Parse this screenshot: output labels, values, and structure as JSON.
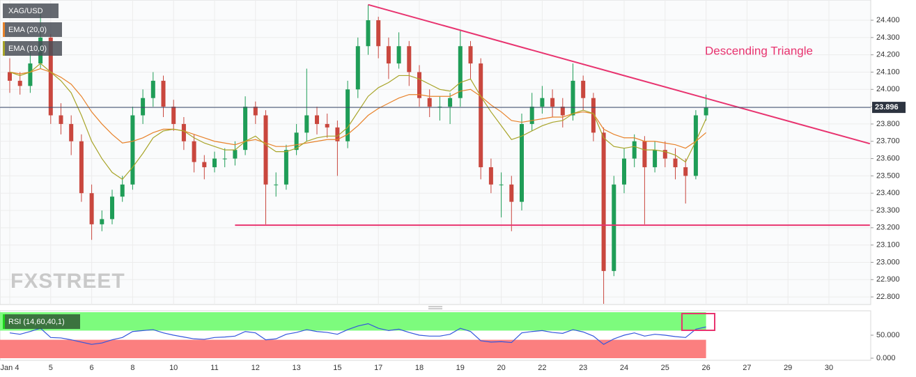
{
  "chart_data": [
    {
      "type": "candlestick",
      "title": "XAG/USD",
      "categories": [
        "Jan 4",
        null,
        null,
        null,
        "5",
        null,
        null,
        null,
        "6",
        null,
        null,
        null,
        "8",
        null,
        null,
        null,
        "10",
        null,
        null,
        null,
        "11",
        null,
        null,
        null,
        "12",
        null,
        null,
        null,
        "13",
        null,
        null,
        null,
        "15",
        null,
        null,
        null,
        "17",
        null,
        null,
        null,
        "18",
        null,
        null,
        null,
        "19",
        null,
        null,
        null,
        "20",
        null,
        null,
        null,
        "22",
        null,
        null,
        null,
        "23",
        null,
        null,
        null,
        "24",
        null,
        null,
        null,
        "25",
        null,
        null,
        null,
        "26",
        null,
        null,
        null,
        "27",
        null,
        null,
        null,
        "29",
        null,
        null,
        null,
        "30"
      ],
      "open": [
        24.1,
        24.05,
        24.02,
        24.15,
        24.3,
        23.85,
        23.8,
        23.7,
        23.4,
        23.22,
        23.25,
        23.38,
        23.45,
        23.85,
        23.95,
        24.05,
        23.9,
        23.8,
        23.7,
        23.58,
        23.55,
        23.6,
        23.6,
        23.65,
        23.9,
        23.85,
        23.45,
        23.45,
        23.65,
        23.75,
        23.85,
        23.8,
        23.78,
        23.7,
        24.0,
        24.25,
        24.4,
        24.25,
        24.15,
        24.25,
        24.1,
        23.95,
        23.9,
        23.9,
        23.95,
        24.25,
        24.15,
        23.55,
        23.45,
        23.45,
        23.35,
        23.8,
        23.9,
        23.95,
        23.9,
        23.85,
        24.05,
        23.95,
        23.75,
        22.95,
        23.45,
        23.6,
        23.7,
        23.55,
        23.65,
        23.6,
        23.55,
        23.5,
        23.85,
        null,
        null,
        null,
        null,
        null,
        null,
        null,
        null,
        null,
        null,
        null,
        null
      ],
      "high": [
        24.18,
        24.1,
        24.22,
        24.45,
        24.32,
        23.92,
        23.85,
        23.74,
        23.45,
        23.3,
        23.42,
        23.5,
        23.9,
        24.0,
        24.1,
        24.08,
        23.94,
        23.84,
        23.74,
        23.62,
        23.64,
        23.66,
        23.7,
        23.96,
        23.93,
        23.88,
        23.52,
        23.68,
        23.8,
        24.12,
        23.9,
        23.86,
        23.82,
        24.05,
        24.3,
        24.49,
        24.42,
        24.3,
        24.33,
        24.28,
        24.14,
        24.0,
        23.96,
        23.98,
        24.34,
        24.28,
        24.18,
        23.6,
        23.52,
        23.5,
        23.86,
        23.98,
        24.02,
        24.0,
        23.95,
        24.15,
        24.08,
        23.98,
        23.78,
        23.5,
        23.66,
        23.74,
        23.73,
        23.7,
        23.7,
        23.66,
        23.6,
        23.88,
        23.97,
        null,
        null,
        null,
        null,
        null,
        null,
        null,
        null,
        null,
        null,
        null,
        null
      ],
      "low": [
        23.98,
        23.97,
        23.98,
        24.12,
        23.8,
        23.74,
        23.62,
        23.35,
        23.13,
        23.18,
        23.22,
        23.35,
        23.42,
        23.8,
        23.9,
        23.84,
        23.76,
        23.65,
        23.52,
        23.48,
        23.52,
        23.55,
        23.56,
        23.62,
        23.8,
        23.22,
        23.38,
        23.42,
        23.62,
        23.7,
        23.74,
        23.72,
        23.5,
        23.66,
        23.95,
        24.2,
        24.18,
        24.06,
        24.12,
        24.02,
        23.9,
        23.84,
        23.82,
        23.8,
        23.9,
        24.06,
        23.48,
        23.4,
        23.26,
        23.18,
        23.3,
        23.76,
        23.86,
        23.84,
        23.78,
        23.82,
        23.88,
        23.7,
        22.76,
        22.92,
        23.4,
        23.55,
        23.22,
        23.52,
        23.55,
        23.48,
        23.34,
        23.48,
        23.82,
        null,
        null,
        null,
        null,
        null,
        null,
        null,
        null,
        null,
        null,
        null,
        null
      ],
      "close": [
        24.05,
        24.02,
        24.15,
        24.3,
        23.85,
        23.8,
        23.7,
        23.4,
        23.22,
        23.25,
        23.38,
        23.45,
        23.85,
        23.95,
        24.05,
        23.9,
        23.8,
        23.7,
        23.58,
        23.55,
        23.6,
        23.6,
        23.65,
        23.9,
        23.85,
        23.45,
        23.45,
        23.65,
        23.75,
        23.85,
        23.8,
        23.78,
        23.7,
        24.0,
        24.25,
        24.4,
        24.25,
        24.15,
        24.25,
        24.1,
        23.95,
        23.9,
        23.9,
        23.95,
        24.25,
        24.15,
        23.55,
        23.45,
        23.45,
        23.35,
        23.8,
        23.9,
        23.95,
        23.9,
        23.85,
        24.05,
        23.95,
        23.75,
        22.95,
        23.45,
        23.6,
        23.7,
        23.55,
        23.65,
        23.6,
        23.55,
        23.5,
        23.85,
        23.896,
        null,
        null,
        null,
        null,
        null,
        null,
        null,
        null,
        null,
        null,
        null,
        null
      ],
      "up_color": "#1f9d57",
      "down_color": "#c9473e",
      "series": [
        {
          "name": "EMA (20,0)",
          "color": "#e8822a",
          "values": [
            24.1,
            24.09,
            24.1,
            24.12,
            24.1,
            24.07,
            24.03,
            23.96,
            23.87,
            23.8,
            23.74,
            23.69,
            23.7,
            23.72,
            23.75,
            23.77,
            23.77,
            23.76,
            23.74,
            23.72,
            23.7,
            23.69,
            23.68,
            23.7,
            23.71,
            23.69,
            23.67,
            23.67,
            23.68,
            23.69,
            23.7,
            23.71,
            23.71,
            23.74,
            23.79,
            23.85,
            23.89,
            23.92,
            23.95,
            23.97,
            23.97,
            23.96,
            23.96,
            23.96,
            23.99,
            24.0,
            23.96,
            23.91,
            23.87,
            23.82,
            23.81,
            23.82,
            23.83,
            23.84,
            23.84,
            23.86,
            23.87,
            23.86,
            23.77,
            23.74,
            23.72,
            23.72,
            23.7,
            23.7,
            23.69,
            23.68,
            23.66,
            23.7,
            23.75,
            null,
            null,
            null,
            null,
            null,
            null,
            null,
            null,
            null,
            null,
            null,
            null
          ]
        },
        {
          "name": "EMA (10,0)",
          "color": "#a8a428",
          "values": [
            24.1,
            24.08,
            24.1,
            24.15,
            24.1,
            24.05,
            23.98,
            23.85,
            23.7,
            23.6,
            23.52,
            23.48,
            23.55,
            23.63,
            23.72,
            23.76,
            23.77,
            23.76,
            23.72,
            23.69,
            23.67,
            23.65,
            23.65,
            23.7,
            23.73,
            23.68,
            23.64,
            23.64,
            23.66,
            23.7,
            23.72,
            23.73,
            23.73,
            23.78,
            23.87,
            23.96,
            24.01,
            24.04,
            24.08,
            24.08,
            24.06,
            24.03,
            24.0,
            23.99,
            24.04,
            24.06,
            23.96,
            23.87,
            23.79,
            23.71,
            23.73,
            23.76,
            23.79,
            23.81,
            23.82,
            23.86,
            23.88,
            23.86,
            23.72,
            23.67,
            23.66,
            23.67,
            23.65,
            23.65,
            23.64,
            23.62,
            23.58,
            23.7,
            23.83,
            null,
            null,
            null,
            null,
            null,
            null,
            null,
            null,
            null,
            null,
            null,
            null
          ]
        }
      ],
      "ylim": [
        22.756,
        24.517
      ],
      "yticks": [
        {
          "value": 22.8,
          "label": "22.800"
        },
        {
          "value": 22.9,
          "label": "22.900"
        },
        {
          "value": 23.0,
          "label": "23.000"
        },
        {
          "value": 23.1,
          "label": "23.100"
        },
        {
          "value": 23.2,
          "label": "23.200"
        },
        {
          "value": 23.3,
          "label": "23.300"
        },
        {
          "value": 23.4,
          "label": "23.400"
        },
        {
          "value": 23.5,
          "label": "23.500"
        },
        {
          "value": 23.6,
          "label": "23.600"
        },
        {
          "value": 23.7,
          "label": "23.700"
        },
        {
          "value": 23.8,
          "label": "23.800"
        },
        {
          "value": 23.9,
          "label": "23.900"
        },
        {
          "value": 24.0,
          "label": "24.000"
        },
        {
          "value": 24.1,
          "label": "24.100"
        },
        {
          "value": 24.2,
          "label": "24.200"
        },
        {
          "value": 24.3,
          "label": "24.300"
        },
        {
          "value": 24.4,
          "label": "24.400"
        }
      ],
      "grid": true,
      "last_price": 23.896,
      "annotation": "Descending Triangle",
      "lines": [
        {
          "x": [
            35,
            84
          ],
          "y": [
            24.49,
            23.686
          ],
          "color": "#e8336f"
        },
        {
          "x": [
            22,
            84
          ],
          "y": [
            23.215,
            23.215
          ],
          "color": "#e8336f"
        }
      ],
      "watermark": "FXSTREET"
    },
    {
      "type": "line",
      "series": [
        {
          "name": "RSI (14,60,40,1)",
          "color": "#3355dd",
          "values": [
            55,
            52,
            58,
            65,
            45,
            44,
            40,
            35,
            30,
            33,
            40,
            45,
            58,
            60,
            62,
            55,
            50,
            46,
            42,
            41,
            45,
            46,
            48,
            58,
            55,
            40,
            42,
            52,
            56,
            62,
            58,
            56,
            52,
            62,
            70,
            75,
            65,
            60,
            63,
            56,
            50,
            48,
            48,
            52,
            65,
            58,
            38,
            35,
            36,
            34,
            55,
            58,
            60,
            56,
            54,
            62,
            57,
            48,
            30,
            42,
            50,
            55,
            48,
            52,
            50,
            47,
            45,
            63,
            68,
            null,
            null,
            null,
            null,
            null,
            null,
            null,
            null,
            null,
            null,
            null,
            null
          ]
        }
      ],
      "ylim": [
        0,
        100
      ],
      "yticks": [
        {
          "value": 50,
          "label": "50.000"
        },
        {
          "value": 0,
          "label": "0.000"
        }
      ],
      "zones": [
        {
          "from": 60,
          "to": 100,
          "color": "#7dfb7d"
        },
        {
          "from": 0,
          "to": 40,
          "color": "#fb7f7f"
        }
      ]
    }
  ]
}
